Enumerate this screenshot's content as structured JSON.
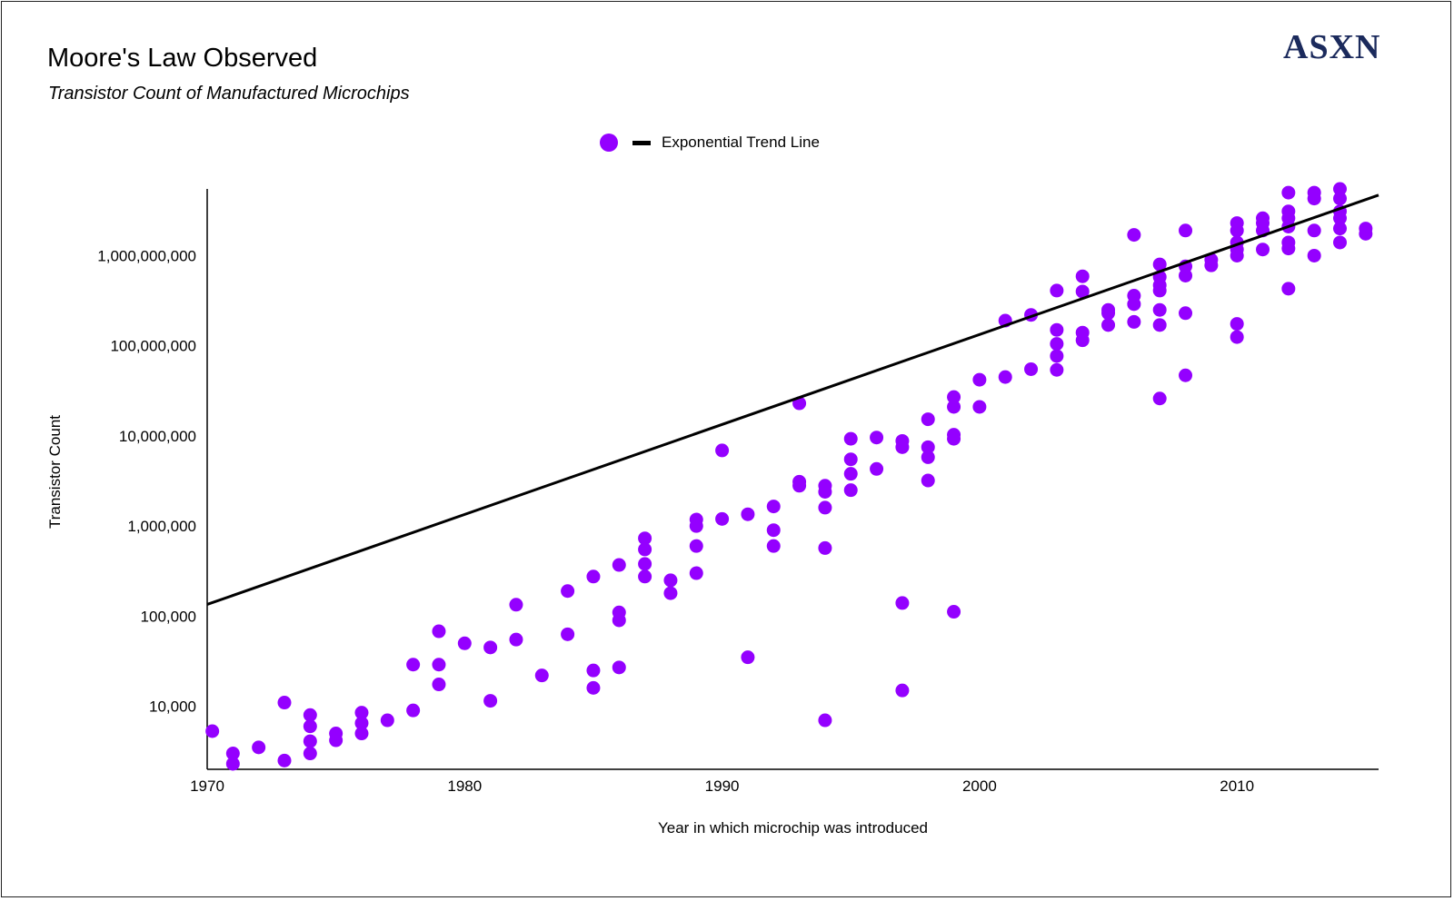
{
  "brand": {
    "logo_text": "ASXN",
    "logo_color": "#1b2a5c"
  },
  "chart_data": {
    "type": "scatter",
    "title": "Moore's Law Observed",
    "subtitle": "Transistor Count of Manufactured Microchips",
    "xlabel": "Year in which microchip was introduced",
    "ylabel": "Transistor Count",
    "xlim": [
      1970,
      2015.5
    ],
    "ylim": [
      2000,
      5500000000
    ],
    "y_scale": "log",
    "x_ticks": [
      "1970",
      "1980",
      "1990",
      "2000",
      "2010"
    ],
    "y_ticks": [
      {
        "value": 10000,
        "label": "10,000"
      },
      {
        "value": 100000,
        "label": "100,000"
      },
      {
        "value": 1000000,
        "label": "1,000,000"
      },
      {
        "value": 10000000,
        "label": "10,000,000"
      },
      {
        "value": 100000000,
        "label": "100,000,000"
      },
      {
        "value": 1000000000,
        "label": "1,000,000,000"
      }
    ],
    "grid": false,
    "legend_position": "top-center",
    "series": [
      {
        "kind": "scatter",
        "color": "#9400ff",
        "points": [
          [
            1970.2,
            5300
          ],
          [
            1971,
            3000
          ],
          [
            1971,
            2300
          ],
          [
            1972,
            3500
          ],
          [
            1973,
            2500
          ],
          [
            1973,
            11000
          ],
          [
            1974,
            3000
          ],
          [
            1974,
            4100
          ],
          [
            1974,
            6000
          ],
          [
            1974,
            8000
          ],
          [
            1975,
            4200
          ],
          [
            1975,
            5000
          ],
          [
            1976,
            5000
          ],
          [
            1976,
            6500
          ],
          [
            1976,
            8500
          ],
          [
            1977,
            7000
          ],
          [
            1978,
            9000
          ],
          [
            1978,
            29000
          ],
          [
            1979,
            17500
          ],
          [
            1979,
            29000
          ],
          [
            1979,
            68000
          ],
          [
            1980,
            50000
          ],
          [
            1981,
            11500
          ],
          [
            1981,
            45000
          ],
          [
            1982,
            55000
          ],
          [
            1982,
            134000
          ],
          [
            1983,
            22000
          ],
          [
            1984,
            63000
          ],
          [
            1984,
            190000
          ],
          [
            1985,
            16000
          ],
          [
            1985,
            25000
          ],
          [
            1985,
            275000
          ],
          [
            1986,
            27000
          ],
          [
            1986,
            90000
          ],
          [
            1986,
            110000
          ],
          [
            1986,
            370000
          ],
          [
            1987,
            275000
          ],
          [
            1987,
            380000
          ],
          [
            1987,
            550000
          ],
          [
            1987,
            730000
          ],
          [
            1988,
            180000
          ],
          [
            1988,
            250000
          ],
          [
            1989,
            300000
          ],
          [
            1989,
            600000
          ],
          [
            1989,
            1000000
          ],
          [
            1989,
            1180000
          ],
          [
            1990,
            1200000
          ],
          [
            1990,
            6900000
          ],
          [
            1991,
            35000
          ],
          [
            1991,
            1350000
          ],
          [
            1992,
            600000
          ],
          [
            1992,
            900000
          ],
          [
            1992,
            1650000
          ],
          [
            1993,
            2800000
          ],
          [
            1993,
            3100000
          ],
          [
            1993,
            23000000
          ],
          [
            1994,
            7000
          ],
          [
            1994,
            570000
          ],
          [
            1994,
            1600000
          ],
          [
            1994,
            2400000
          ],
          [
            1994,
            2800000
          ],
          [
            1995,
            2500000
          ],
          [
            1995,
            3800000
          ],
          [
            1995,
            5500000
          ],
          [
            1995,
            9300000
          ],
          [
            1996,
            4300000
          ],
          [
            1996,
            9600000
          ],
          [
            1997,
            15000
          ],
          [
            1997,
            140000
          ],
          [
            1997,
            7500000
          ],
          [
            1997,
            8800000
          ],
          [
            1998,
            3200000
          ],
          [
            1998,
            5800000
          ],
          [
            1998,
            7500000
          ],
          [
            1998,
            15300000
          ],
          [
            1999,
            112000
          ],
          [
            1999,
            9300000
          ],
          [
            1999,
            10300000
          ],
          [
            1999,
            21000000
          ],
          [
            1999,
            27000000
          ],
          [
            2000,
            21000000
          ],
          [
            2000,
            42000000
          ],
          [
            2001,
            45000000
          ],
          [
            2001,
            190000000
          ],
          [
            2002,
            55000000
          ],
          [
            2002,
            220000000
          ],
          [
            2003,
            54000000
          ],
          [
            2003,
            77000000
          ],
          [
            2003,
            105000000
          ],
          [
            2003,
            150000000
          ],
          [
            2003,
            410000000
          ],
          [
            2004,
            115000000
          ],
          [
            2004,
            140000000
          ],
          [
            2004,
            400000000
          ],
          [
            2004,
            590000000
          ],
          [
            2005,
            170000000
          ],
          [
            2005,
            230000000
          ],
          [
            2005,
            250000000
          ],
          [
            2006,
            184000000
          ],
          [
            2006,
            290000000
          ],
          [
            2006,
            360000000
          ],
          [
            2006,
            1700000000
          ],
          [
            2007,
            26000000
          ],
          [
            2007,
            170000000
          ],
          [
            2007,
            250000000
          ],
          [
            2007,
            410000000
          ],
          [
            2007,
            470000000
          ],
          [
            2007,
            580000000
          ],
          [
            2007,
            800000000
          ],
          [
            2008,
            47000000
          ],
          [
            2008,
            230000000
          ],
          [
            2008,
            600000000
          ],
          [
            2008,
            760000000
          ],
          [
            2008,
            1900000000
          ],
          [
            2009,
            780000000
          ],
          [
            2009,
            900000000
          ],
          [
            2010,
            125000000
          ],
          [
            2010,
            175000000
          ],
          [
            2010,
            1000000000
          ],
          [
            2010,
            1170000000
          ],
          [
            2010,
            1400000000
          ],
          [
            2010,
            1900000000
          ],
          [
            2010,
            2300000000
          ],
          [
            2011,
            1170000000
          ],
          [
            2011,
            1900000000
          ],
          [
            2011,
            2300000000
          ],
          [
            2011,
            2600000000
          ],
          [
            2012,
            430000000
          ],
          [
            2012,
            1200000000
          ],
          [
            2012,
            1400000000
          ],
          [
            2012,
            2100000000
          ],
          [
            2012,
            2600000000
          ],
          [
            2012,
            3100000000
          ],
          [
            2012,
            5000000000
          ],
          [
            2013,
            1000000000
          ],
          [
            2013,
            1900000000
          ],
          [
            2013,
            4300000000
          ],
          [
            2013,
            5000000000
          ],
          [
            2014,
            1400000000
          ],
          [
            2014,
            2000000000
          ],
          [
            2014,
            2600000000
          ],
          [
            2014,
            3100000000
          ],
          [
            2014,
            4300000000
          ],
          [
            2014,
            5500000000
          ],
          [
            2015,
            1750000000
          ],
          [
            2015,
            2000000000
          ]
        ]
      },
      {
        "kind": "line",
        "name": "Exponential Trend Line",
        "color": "#000000",
        "points": [
          [
            1970,
            135000
          ],
          [
            2015.5,
            4700000000
          ]
        ]
      }
    ]
  }
}
